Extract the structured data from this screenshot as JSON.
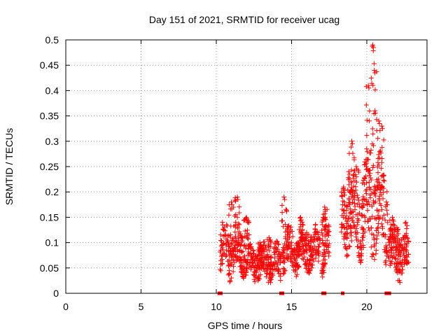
{
  "chart_data": {
    "type": "scatter",
    "title": "Day 151 of 2021, SRMTID for receiver ucag",
    "xlabel": "GPS time / hours",
    "ylabel": "SRMTID / TECUs",
    "xlim": [
      0,
      24
    ],
    "ylim": [
      0,
      0.5
    ],
    "xticks": [
      0,
      5,
      10,
      15,
      20
    ],
    "xtick_labels": [
      "0",
      "5",
      "10",
      "15",
      "20"
    ],
    "yticks": [
      0,
      0.05,
      0.1,
      0.15,
      0.2,
      0.25,
      0.3,
      0.35,
      0.4,
      0.45,
      0.5
    ],
    "ytick_labels": [
      "0",
      "0.05",
      "0.1",
      "0.15",
      "0.2",
      "0.25",
      "0.3",
      "0.35",
      "0.4",
      "0.45",
      "0.5"
    ],
    "grid": true,
    "marker": "+",
    "color": "#ff0000",
    "baseline_markers": [
      {
        "x": 10.2
      },
      {
        "x": 10.3
      },
      {
        "x": 14.3
      },
      {
        "x": 14.4
      },
      {
        "x": 17.1
      },
      {
        "x": 17.2
      },
      {
        "x": 18.4
      },
      {
        "x": 21.3
      },
      {
        "x": 21.5
      }
    ],
    "series": [
      {
        "name": "SRMTID",
        "segments": [
          {
            "x_start": 10.25,
            "x_end": 12.2,
            "base": 0.085,
            "spread": 0.045,
            "peaks": [
              [
                11.4,
                0.19
              ],
              [
                11.0,
                0.18
              ],
              [
                12.0,
                0.15
              ]
            ]
          },
          {
            "x_start": 12.2,
            "x_end": 14.3,
            "base": 0.06,
            "spread": 0.03,
            "peaks": [
              [
                13.5,
                0.11
              ],
              [
                12.9,
                0.1
              ]
            ]
          },
          {
            "x_start": 14.4,
            "x_end": 16.9,
            "base": 0.085,
            "spread": 0.035,
            "peaks": [
              [
                14.5,
                0.19
              ],
              [
                15.6,
                0.15
              ],
              [
                16.0,
                0.12
              ]
            ]
          },
          {
            "x_start": 17.0,
            "x_end": 17.5,
            "base": 0.09,
            "spread": 0.04,
            "peaks": [
              [
                17.2,
                0.17
              ],
              [
                17.1,
                0.15
              ]
            ]
          },
          {
            "x_start": 18.3,
            "x_end": 19.7,
            "base": 0.15,
            "spread": 0.06,
            "peaks": [
              [
                19.0,
                0.3
              ],
              [
                19.3,
                0.25
              ],
              [
                18.8,
                0.24
              ]
            ]
          },
          {
            "x_start": 19.7,
            "x_end": 21.4,
            "base": 0.17,
            "spread": 0.08,
            "peaks": [
              [
                20.4,
                0.49
              ],
              [
                20.1,
                0.41
              ],
              [
                20.5,
                0.44
              ],
              [
                20.8,
                0.34
              ],
              [
                21.0,
                0.33
              ]
            ]
          },
          {
            "x_start": 21.4,
            "x_end": 22.8,
            "base": 0.08,
            "spread": 0.04,
            "peaks": [
              [
                21.7,
                0.15
              ],
              [
                22.0,
                0.13
              ]
            ]
          }
        ]
      }
    ]
  }
}
